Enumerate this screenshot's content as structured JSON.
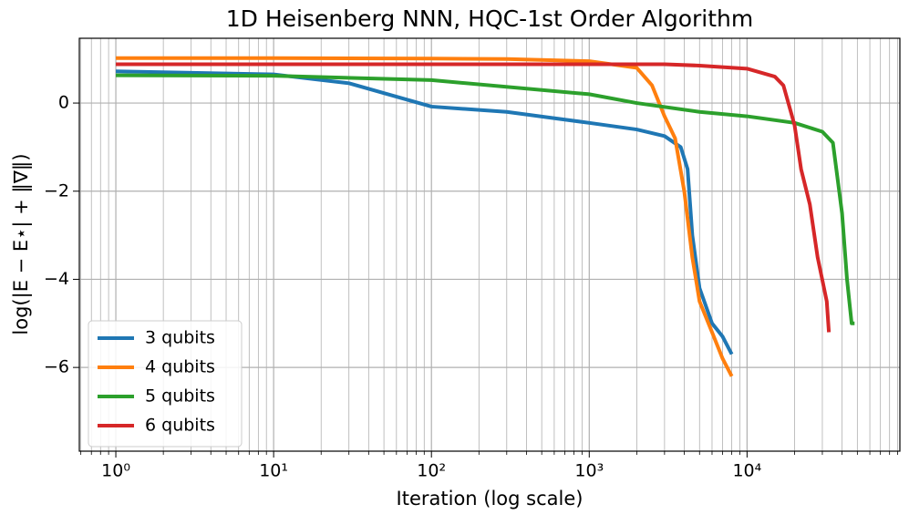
{
  "chart_data": {
    "type": "line",
    "title": "1D Heisenberg NNN, HQC-1st Order Algorithm",
    "xlabel": "Iteration (log scale)",
    "ylabel": "log(|E − E⋆| + ‖∇‖)",
    "xscale": "log",
    "grid": true,
    "legend": "lower left",
    "xlim": [
      0.587,
      93000
    ],
    "ylim": [
      -7.9,
      1.47
    ],
    "xticks": [
      {
        "value": 1,
        "label": "10⁰"
      },
      {
        "value": 10,
        "label": "10¹"
      },
      {
        "value": 100,
        "label": "10²"
      },
      {
        "value": 1000,
        "label": "10³"
      },
      {
        "value": 10000,
        "label": "10⁴"
      }
    ],
    "xminorticks": [
      0.6,
      0.7,
      0.8,
      0.9,
      2,
      3,
      4,
      5,
      6,
      7,
      8,
      9,
      20,
      30,
      40,
      50,
      60,
      70,
      80,
      90,
      200,
      300,
      400,
      500,
      600,
      700,
      800,
      900,
      2000,
      3000,
      4000,
      5000,
      6000,
      7000,
      8000,
      9000,
      20000,
      30000,
      40000,
      50000,
      60000,
      70000,
      80000,
      90000
    ],
    "yticks": [
      {
        "value": -6,
        "label": "−6"
      },
      {
        "value": -4,
        "label": "−4"
      },
      {
        "value": -2,
        "label": "−2"
      },
      0
    ],
    "series": [
      {
        "name": "3 qubits",
        "color": "#1f77b4",
        "x": [
          1,
          10,
          30,
          100,
          300,
          1000,
          2000,
          3000,
          3800,
          4200,
          4500,
          5000,
          6000,
          7000,
          8000
        ],
        "values": [
          0.72,
          0.65,
          0.45,
          -0.08,
          -0.2,
          -0.45,
          -0.6,
          -0.75,
          -1.0,
          -1.5,
          -3.0,
          -4.2,
          -5.0,
          -5.3,
          -5.7
        ]
      },
      {
        "name": "4 qubits",
        "color": "#ff7f0e",
        "x": [
          1,
          10,
          100,
          300,
          1000,
          2000,
          2500,
          3000,
          3500,
          4000,
          4500,
          5000,
          6000,
          7000,
          8000
        ],
        "values": [
          1.02,
          1.02,
          1.01,
          1.0,
          0.95,
          0.8,
          0.4,
          -0.3,
          -0.8,
          -2.0,
          -3.5,
          -4.5,
          -5.2,
          -5.8,
          -6.2
        ]
      },
      {
        "name": "5 qubits",
        "color": "#2ca02c",
        "x": [
          1,
          10,
          100,
          1000,
          2000,
          5000,
          10000,
          20000,
          30000,
          35000,
          40000,
          43000,
          46000,
          48000
        ],
        "values": [
          0.63,
          0.62,
          0.52,
          0.2,
          0.0,
          -0.2,
          -0.3,
          -0.45,
          -0.65,
          -0.9,
          -2.5,
          -4.0,
          -5.0,
          -5.0
        ]
      },
      {
        "name": "6 qubits",
        "color": "#d62728",
        "x": [
          1,
          10,
          100,
          1000,
          3000,
          5000,
          10000,
          15000,
          17000,
          20000,
          22000,
          25000,
          28000,
          32000,
          33000
        ],
        "values": [
          0.88,
          0.88,
          0.88,
          0.88,
          0.88,
          0.85,
          0.78,
          0.6,
          0.4,
          -0.5,
          -1.5,
          -2.3,
          -3.5,
          -4.5,
          -5.2
        ]
      }
    ]
  }
}
